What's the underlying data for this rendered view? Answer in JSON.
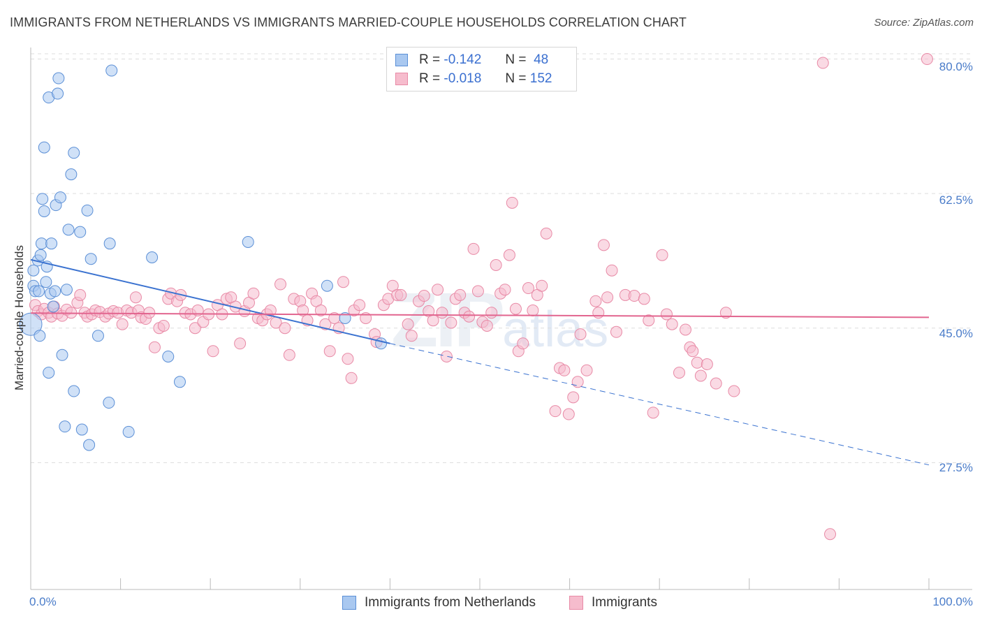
{
  "title": "IMMIGRANTS FROM NETHERLANDS VS IMMIGRANTS MARRIED-COUPLE HOUSEHOLDS CORRELATION CHART",
  "source": "Source: ZipAtlas.com",
  "watermark": {
    "zip": "ZIP",
    "atlas": "atlas"
  },
  "legend": {
    "rows": [
      {
        "r_label": "R =",
        "r_value": "-0.142",
        "n_label": "N =",
        "n_value": "48"
      },
      {
        "r_label": "R =",
        "r_value": "-0.018",
        "n_label": "N =",
        "n_value": "152"
      }
    ]
  },
  "colors": {
    "blue_fill": "#a9c8f0",
    "blue_stroke": "#5b8fd6",
    "blue_line": "#3a72d0",
    "pink_fill": "#f6bccd",
    "pink_stroke": "#e88aa6",
    "pink_line": "#e2658f",
    "grid": "#dddddd",
    "axis_text": "#4a7cc9"
  },
  "chart_data": {
    "type": "scatter",
    "title": "IMMIGRANTS FROM NETHERLANDS VS IMMIGRANTS MARRIED-COUPLE HOUSEHOLDS CORRELATION CHART",
    "xlabel": "",
    "ylabel": "Married-couple Households",
    "xlim": [
      0,
      100
    ],
    "ylim": [
      11.0,
      81.5
    ],
    "x_tick_labels": [
      "0.0%",
      "100.0%"
    ],
    "y_ticks": [
      27.5,
      45.0,
      62.5,
      80.0
    ],
    "y_tick_labels": [
      "27.5%",
      "45.0%",
      "62.5%",
      "80.0%"
    ],
    "grid": true,
    "legend_position": "top-center",
    "series": [
      {
        "name": "Immigrants from Netherlands",
        "color": "#a9c8f0",
        "points": [
          [
            0.0,
            45.5
          ],
          [
            0.3,
            52.5
          ],
          [
            0.3,
            50.5
          ],
          [
            0.5,
            49.8
          ],
          [
            0.8,
            53.8
          ],
          [
            0.9,
            49.8
          ],
          [
            1.0,
            44.0
          ],
          [
            1.1,
            54.5
          ],
          [
            1.2,
            56.0
          ],
          [
            1.3,
            61.8
          ],
          [
            1.5,
            60.2
          ],
          [
            1.5,
            68.5
          ],
          [
            1.7,
            51.0
          ],
          [
            1.8,
            53.0
          ],
          [
            2.0,
            39.2
          ],
          [
            2.0,
            75.0
          ],
          [
            2.2,
            49.5
          ],
          [
            2.3,
            56.0
          ],
          [
            2.5,
            47.8
          ],
          [
            2.7,
            49.8
          ],
          [
            2.8,
            61.0
          ],
          [
            3.0,
            75.5
          ],
          [
            3.1,
            77.5
          ],
          [
            3.3,
            62.0
          ],
          [
            3.5,
            41.5
          ],
          [
            3.8,
            32.2
          ],
          [
            4.0,
            50.0
          ],
          [
            4.2,
            57.8
          ],
          [
            4.5,
            65.0
          ],
          [
            4.8,
            36.8
          ],
          [
            4.8,
            67.8
          ],
          [
            5.5,
            57.5
          ],
          [
            5.7,
            31.8
          ],
          [
            6.3,
            60.3
          ],
          [
            6.5,
            29.8
          ],
          [
            6.7,
            54.0
          ],
          [
            7.5,
            44.0
          ],
          [
            8.7,
            35.3
          ],
          [
            8.8,
            56.0
          ],
          [
            9.0,
            78.5
          ],
          [
            10.9,
            31.5
          ],
          [
            13.5,
            54.2
          ],
          [
            15.3,
            41.3
          ],
          [
            16.6,
            38.0
          ],
          [
            24.2,
            56.2
          ],
          [
            33.0,
            50.5
          ],
          [
            35.0,
            46.3
          ],
          [
            39.0,
            43.0
          ]
        ]
      },
      {
        "name": "Immigrants",
        "color": "#f6bccd",
        "points": [
          [
            0.5,
            48.0
          ],
          [
            0.8,
            47.2
          ],
          [
            1.2,
            46.8
          ],
          [
            1.5,
            47.5
          ],
          [
            2.0,
            47.0
          ],
          [
            2.3,
            46.5
          ],
          [
            2.6,
            47.8
          ],
          [
            3.0,
            46.9
          ],
          [
            3.5,
            46.6
          ],
          [
            4.0,
            47.4
          ],
          [
            4.5,
            47.0
          ],
          [
            5.2,
            48.3
          ],
          [
            5.5,
            49.3
          ],
          [
            6.0,
            47.0
          ],
          [
            6.3,
            46.5
          ],
          [
            6.8,
            46.8
          ],
          [
            7.2,
            47.3
          ],
          [
            7.7,
            47.1
          ],
          [
            8.3,
            46.5
          ],
          [
            8.7,
            46.9
          ],
          [
            9.2,
            47.2
          ],
          [
            9.7,
            47.0
          ],
          [
            10.2,
            45.5
          ],
          [
            10.7,
            47.3
          ],
          [
            11.2,
            47.0
          ],
          [
            11.7,
            49.0
          ],
          [
            12.0,
            47.3
          ],
          [
            12.3,
            46.4
          ],
          [
            12.8,
            46.2
          ],
          [
            13.2,
            47.0
          ],
          [
            13.8,
            42.5
          ],
          [
            14.3,
            45.0
          ],
          [
            14.8,
            45.3
          ],
          [
            15.3,
            48.8
          ],
          [
            15.6,
            49.5
          ],
          [
            16.3,
            48.5
          ],
          [
            16.7,
            49.3
          ],
          [
            17.2,
            47.0
          ],
          [
            17.8,
            46.8
          ],
          [
            18.3,
            45.0
          ],
          [
            18.6,
            47.3
          ],
          [
            19.2,
            45.8
          ],
          [
            19.8,
            46.8
          ],
          [
            20.3,
            42.0
          ],
          [
            20.8,
            48.0
          ],
          [
            21.3,
            46.8
          ],
          [
            21.8,
            48.8
          ],
          [
            22.3,
            49.0
          ],
          [
            22.8,
            47.8
          ],
          [
            23.3,
            43.0
          ],
          [
            23.8,
            47.2
          ],
          [
            24.3,
            48.3
          ],
          [
            24.8,
            49.5
          ],
          [
            25.3,
            46.3
          ],
          [
            25.8,
            46.0
          ],
          [
            26.3,
            46.8
          ],
          [
            26.7,
            47.3
          ],
          [
            27.3,
            45.7
          ],
          [
            27.8,
            50.7
          ],
          [
            28.3,
            45.0
          ],
          [
            28.8,
            41.5
          ],
          [
            29.3,
            48.8
          ],
          [
            30.0,
            48.5
          ],
          [
            30.3,
            47.3
          ],
          [
            30.8,
            46.0
          ],
          [
            31.3,
            49.5
          ],
          [
            31.8,
            48.5
          ],
          [
            32.3,
            47.3
          ],
          [
            32.8,
            45.5
          ],
          [
            33.3,
            42.0
          ],
          [
            33.8,
            46.3
          ],
          [
            34.3,
            45.0
          ],
          [
            34.8,
            51.0
          ],
          [
            35.3,
            41.0
          ],
          [
            35.7,
            38.5
          ],
          [
            36.0,
            47.3
          ],
          [
            36.6,
            48.0
          ],
          [
            37.3,
            46.3
          ],
          [
            38.3,
            44.2
          ],
          [
            38.5,
            43.2
          ],
          [
            39.3,
            48.0
          ],
          [
            39.8,
            48.8
          ],
          [
            40.3,
            50.5
          ],
          [
            40.8,
            49.3
          ],
          [
            41.2,
            49.3
          ],
          [
            42.0,
            45.5
          ],
          [
            42.4,
            44.0
          ],
          [
            43.2,
            48.5
          ],
          [
            43.8,
            49.2
          ],
          [
            44.3,
            47.2
          ],
          [
            44.8,
            46.0
          ],
          [
            45.3,
            50.0
          ],
          [
            45.8,
            47.0
          ],
          [
            46.3,
            41.3
          ],
          [
            46.8,
            45.7
          ],
          [
            47.3,
            48.8
          ],
          [
            47.8,
            49.3
          ],
          [
            48.3,
            47.0
          ],
          [
            48.8,
            46.5
          ],
          [
            49.3,
            55.3
          ],
          [
            49.8,
            49.8
          ],
          [
            50.3,
            45.8
          ],
          [
            50.8,
            45.3
          ],
          [
            51.3,
            47.0
          ],
          [
            51.8,
            53.2
          ],
          [
            52.3,
            49.5
          ],
          [
            52.8,
            50.0
          ],
          [
            53.3,
            54.5
          ],
          [
            53.6,
            61.3
          ],
          [
            54.0,
            47.5
          ],
          [
            54.3,
            42.0
          ],
          [
            54.8,
            43.0
          ],
          [
            55.4,
            50.2
          ],
          [
            55.9,
            47.3
          ],
          [
            56.4,
            49.3
          ],
          [
            56.9,
            50.5
          ],
          [
            57.4,
            57.3
          ],
          [
            58.4,
            34.2
          ],
          [
            58.9,
            39.8
          ],
          [
            59.4,
            39.5
          ],
          [
            59.9,
            33.8
          ],
          [
            60.4,
            36.0
          ],
          [
            60.9,
            38.0
          ],
          [
            61.2,
            44.2
          ],
          [
            61.9,
            39.5
          ],
          [
            62.9,
            48.5
          ],
          [
            63.2,
            47.0
          ],
          [
            63.8,
            55.8
          ],
          [
            64.2,
            49.0
          ],
          [
            64.7,
            52.5
          ],
          [
            65.2,
            44.5
          ],
          [
            66.2,
            49.3
          ],
          [
            67.2,
            49.2
          ],
          [
            68.3,
            48.8
          ],
          [
            68.8,
            46.0
          ],
          [
            69.3,
            34.0
          ],
          [
            70.3,
            54.5
          ],
          [
            70.8,
            46.8
          ],
          [
            71.4,
            45.5
          ],
          [
            72.2,
            39.2
          ],
          [
            72.9,
            44.8
          ],
          [
            73.4,
            42.5
          ],
          [
            73.7,
            42.0
          ],
          [
            74.2,
            40.5
          ],
          [
            74.6,
            38.8
          ],
          [
            75.3,
            40.3
          ],
          [
            76.3,
            37.8
          ],
          [
            77.4,
            47.0
          ],
          [
            78.3,
            36.8
          ],
          [
            88.2,
            79.5
          ],
          [
            89.0,
            18.2
          ],
          [
            99.8,
            80.0
          ]
        ]
      }
    ],
    "trend_lines": [
      {
        "series": "Immigrants from Netherlands",
        "solid_from": [
          0,
          53.9
        ],
        "solid_to": [
          40,
          43.0
        ],
        "dashed_to": [
          100,
          27.2
        ]
      },
      {
        "series": "Immigrants",
        "from": [
          0,
          46.95
        ],
        "to": [
          100,
          46.4
        ]
      }
    ]
  },
  "bottom_legend": [
    "Immigrants from Netherlands",
    "Immigrants"
  ]
}
